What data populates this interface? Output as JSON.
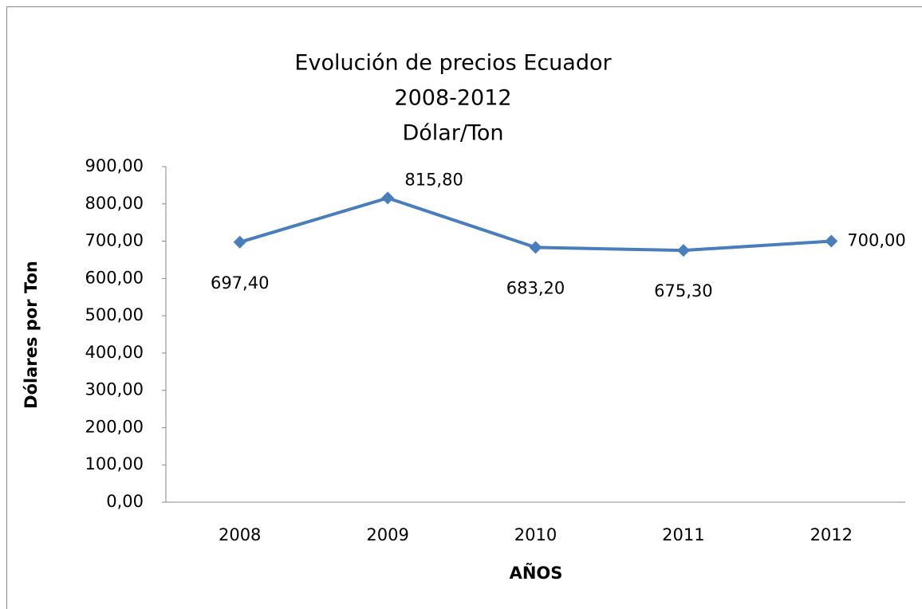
{
  "chart_data": {
    "type": "line",
    "title": [
      "Evolución de precios Ecuador",
      "2008-2012",
      "Dólar/Ton"
    ],
    "x_label": "AÑOS",
    "y_label": "Dólares por Ton",
    "categories": [
      "2008",
      "2009",
      "2010",
      "2011",
      "2012"
    ],
    "series": [
      {
        "name": "Dólar/Ton",
        "color": "#4a7ebb",
        "values": [
          697.4,
          815.8,
          683.2,
          675.3,
          700.0
        ],
        "value_labels": [
          "697,40",
          "815,80",
          "683,20",
          "675,30",
          "700,00"
        ]
      }
    ],
    "ylim": [
      0,
      900
    ],
    "yticks": [
      {
        "value": 0,
        "label": "0,00"
      },
      {
        "value": 100,
        "label": "100,00"
      },
      {
        "value": 200,
        "label": "200,00"
      },
      {
        "value": 300,
        "label": "300,00"
      },
      {
        "value": 400,
        "label": "400,00"
      },
      {
        "value": 500,
        "label": "500,00"
      },
      {
        "value": 600,
        "label": "600,00"
      },
      {
        "value": 700,
        "label": "700,00"
      },
      {
        "value": 800,
        "label": "800,00"
      },
      {
        "value": 900,
        "label": "900,00"
      }
    ],
    "grid": false,
    "legend": false
  }
}
